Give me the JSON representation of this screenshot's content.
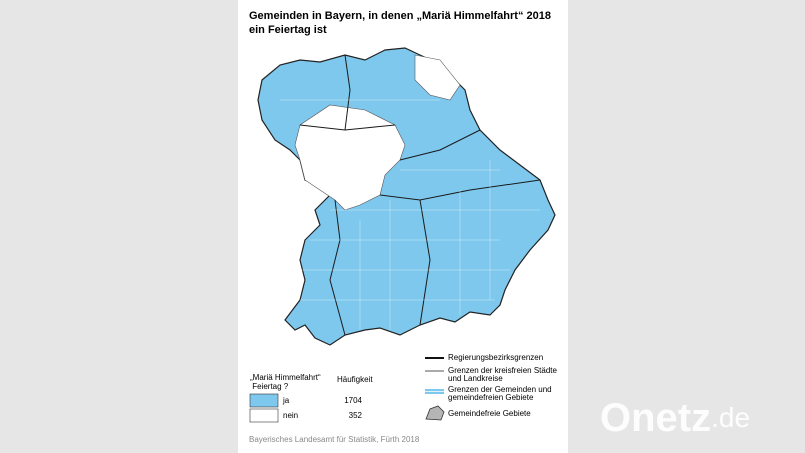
{
  "title_lines": [
    "Gemeinden in Bayern, in denen „Mariä Himmelfahrt“ 2018",
    "ein Feiertag ist"
  ],
  "legend": {
    "header_lines": [
      "„Mariä Himmelfahrt“",
      " Feiertag ?"
    ],
    "count_header": "Häufigkeit",
    "rows": [
      {
        "label": "ja",
        "count": 1704
      },
      {
        "label": "nein",
        "count": 352
      }
    ]
  },
  "boundary_legend": [
    [
      "Regierungsbezirksgrenzen"
    ],
    [
      "Grenzen der kreisfreien Städte",
      "und Landkreise"
    ],
    [
      "Grenzen der Gemeinden und",
      "gemeindefreien Gebiete"
    ],
    [
      "Gemeindefreie Gebiete"
    ]
  ],
  "source": "Bayerisches Landesamt für Statistik, Fürth 2018",
  "watermark": {
    "main": "Onetz",
    "suffix": ".de"
  }
}
